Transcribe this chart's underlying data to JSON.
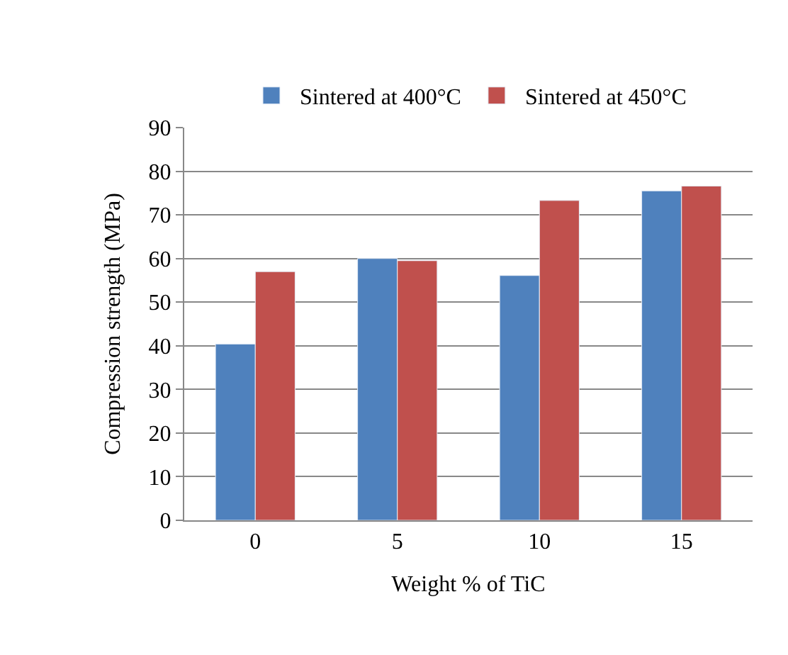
{
  "chart_data": {
    "type": "bar",
    "xlabel": "Weight % of TiC",
    "ylabel": "Compression strength (MPa)",
    "categories": [
      "0",
      "5",
      "10",
      "15"
    ],
    "series": [
      {
        "name": "Sintered at 400°C",
        "color": "#4f81bd",
        "values": [
          40.4,
          60.0,
          56.1,
          75.5
        ]
      },
      {
        "name": "Sintered at 450°C",
        "color": "#c0504d",
        "values": [
          57.0,
          59.5,
          73.3,
          76.6
        ]
      }
    ],
    "ylim": [
      0,
      90
    ],
    "yticks": [
      0,
      10,
      20,
      30,
      40,
      50,
      60,
      70,
      80,
      90
    ],
    "grid": "y",
    "legend": "top"
  }
}
